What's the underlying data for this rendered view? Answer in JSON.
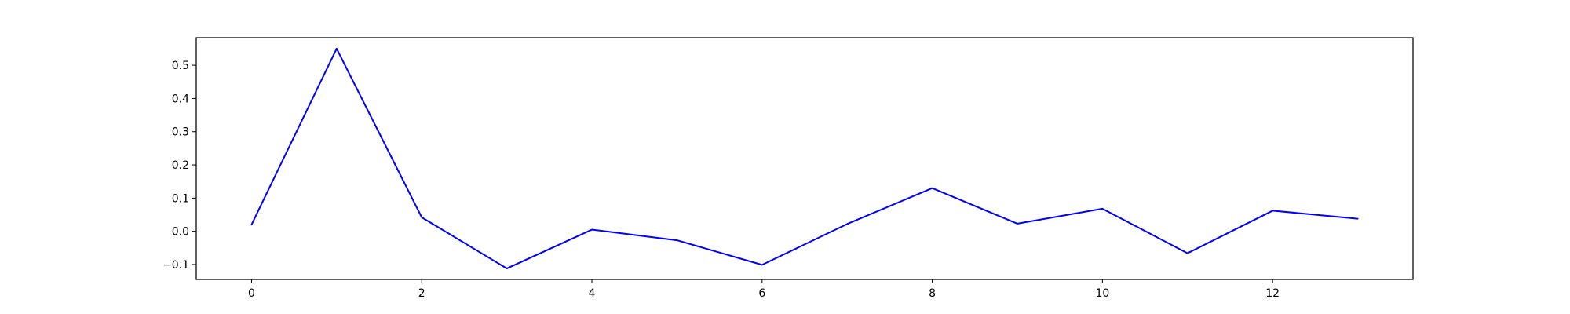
{
  "chart_data": {
    "type": "line",
    "x": [
      0,
      1,
      2,
      3,
      4,
      5,
      6,
      7,
      8,
      9,
      10,
      11,
      12,
      13
    ],
    "series": [
      {
        "values": [
          0.02,
          0.55,
          0.042,
          -0.112,
          0.005,
          -0.027,
          -0.101,
          0.022,
          0.13,
          0.023,
          0.068,
          -0.066,
          0.062,
          0.038
        ],
        "color": "#0000ff"
      }
    ],
    "xlim": [
      -0.65,
      13.65
    ],
    "ylim": [
      -0.145,
      0.583
    ],
    "xticks": [
      0,
      2,
      4,
      6,
      8,
      10,
      12
    ],
    "xtick_labels": [
      "0",
      "2",
      "4",
      "6",
      "8",
      "10",
      "12"
    ],
    "yticks": [
      -0.1,
      0.0,
      0.1,
      0.2,
      0.3,
      0.4,
      0.5
    ],
    "ytick_labels": [
      "−0.1",
      "0.0",
      "0.1",
      "0.2",
      "0.3",
      "0.4",
      "0.5"
    ],
    "title": "",
    "xlabel": "",
    "ylabel": "",
    "grid": false,
    "legend": false
  }
}
